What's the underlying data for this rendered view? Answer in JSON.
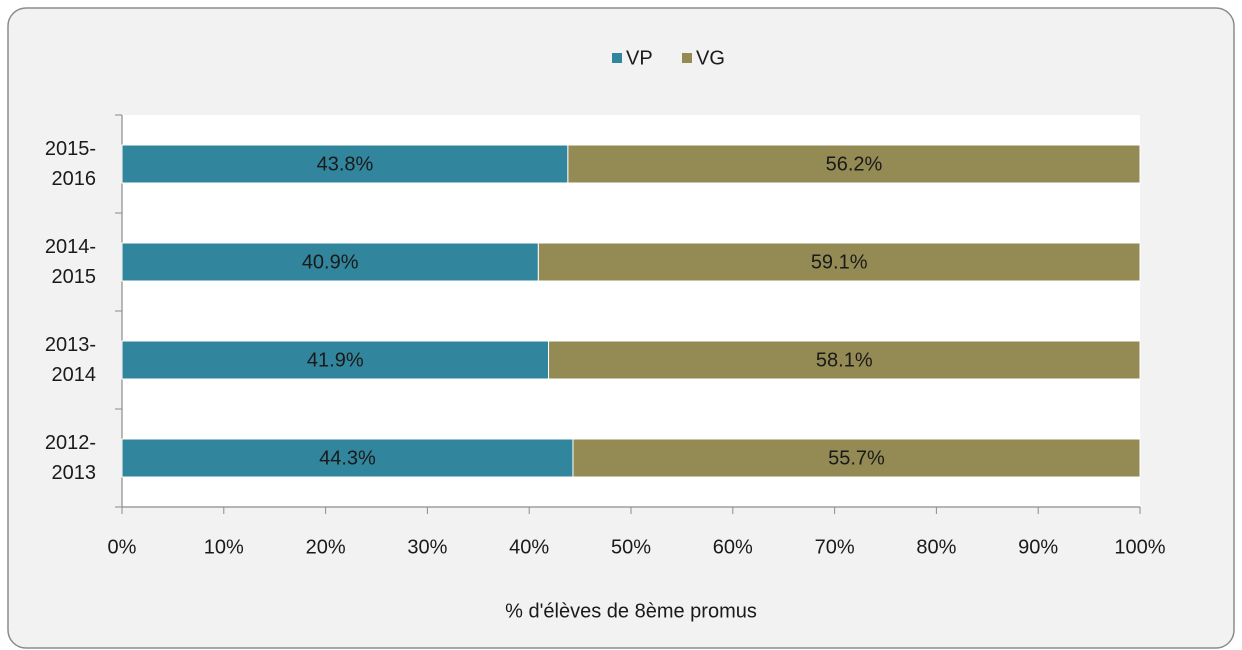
{
  "chart_data": {
    "type": "stacked_barh",
    "xlabel": "% d'élèves de 8ème promus",
    "categories": [
      "2015-2016",
      "2014-2015",
      "2013-2014",
      "2012-2013"
    ],
    "series": [
      {
        "name": "VP",
        "color": "#31859c",
        "values": [
          43.8,
          40.9,
          41.9,
          44.3
        ],
        "value_labels": [
          "43.8%",
          "40.9%",
          "41.9%",
          "44.3%"
        ]
      },
      {
        "name": "VG",
        "color": "#948a54",
        "values": [
          56.2,
          59.1,
          58.1,
          55.7
        ],
        "value_labels": [
          "56.2%",
          "59.1%",
          "58.1%",
          "55.7%"
        ]
      }
    ],
    "xlim": [
      0,
      100
    ],
    "xticks": [
      {
        "value": 0,
        "label": "0%"
      },
      {
        "value": 10,
        "label": "10%"
      },
      {
        "value": 20,
        "label": "20%"
      },
      {
        "value": 30,
        "label": "30%"
      },
      {
        "value": 40,
        "label": "40%"
      },
      {
        "value": 50,
        "label": "50%"
      },
      {
        "value": 60,
        "label": "60%"
      },
      {
        "value": 70,
        "label": "70%"
      },
      {
        "value": 80,
        "label": "80%"
      },
      {
        "value": 90,
        "label": "90%"
      },
      {
        "value": 100,
        "label": "100%"
      }
    ],
    "legend": "top"
  }
}
